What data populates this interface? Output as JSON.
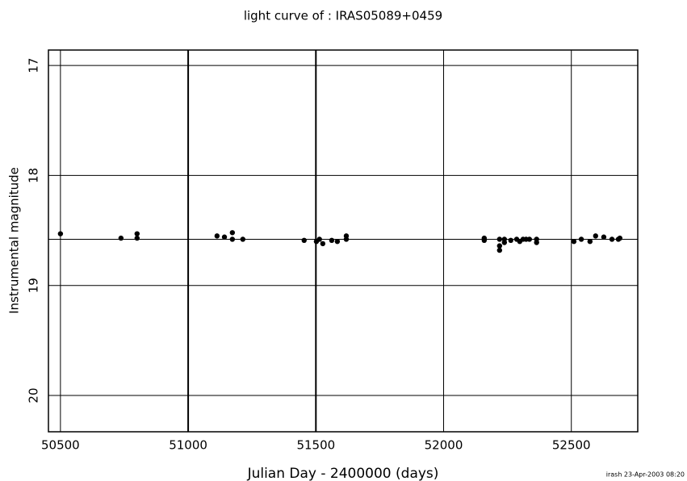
{
  "chart_data": {
    "type": "scatter",
    "title": "light curve of : IRAS05089+0459",
    "xlabel": "Julian Day - 2400000 (days)",
    "ylabel": "Instrumental magnitude",
    "footnote": "irash 23-Apr-2003 08:20",
    "xlim": [
      50453,
      52760
    ],
    "ylim": [
      20.33,
      16.86
    ],
    "xticks": [
      50500,
      51000,
      51500,
      52000,
      52500
    ],
    "yticks": [
      17,
      18,
      19,
      20
    ],
    "grid": true,
    "vlines": [
      51000,
      51500
    ],
    "reference_line": 18.58,
    "color": "#000000",
    "x": [
      50500,
      50737,
      50800,
      50800,
      51113,
      51142,
      51173,
      51173,
      51214,
      51454,
      51502,
      51514,
      51527,
      51562,
      51584,
      51619,
      51619,
      52159,
      52159,
      52219,
      52219,
      52219,
      52238,
      52238,
      52263,
      52286,
      52298,
      52311,
      52323,
      52336,
      52364,
      52364,
      52510,
      52539,
      52573,
      52595,
      52627,
      52659,
      52684,
      52690
    ],
    "values": [
      18.53,
      18.57,
      18.53,
      18.57,
      18.55,
      18.56,
      18.52,
      18.58,
      18.58,
      18.59,
      18.6,
      18.58,
      18.62,
      18.59,
      18.6,
      18.55,
      18.58,
      18.57,
      18.59,
      18.58,
      18.64,
      18.68,
      18.58,
      18.61,
      18.59,
      18.58,
      18.6,
      18.58,
      18.58,
      18.58,
      18.58,
      18.61,
      18.6,
      18.58,
      18.6,
      18.55,
      18.56,
      18.58,
      18.58,
      18.57
    ]
  }
}
